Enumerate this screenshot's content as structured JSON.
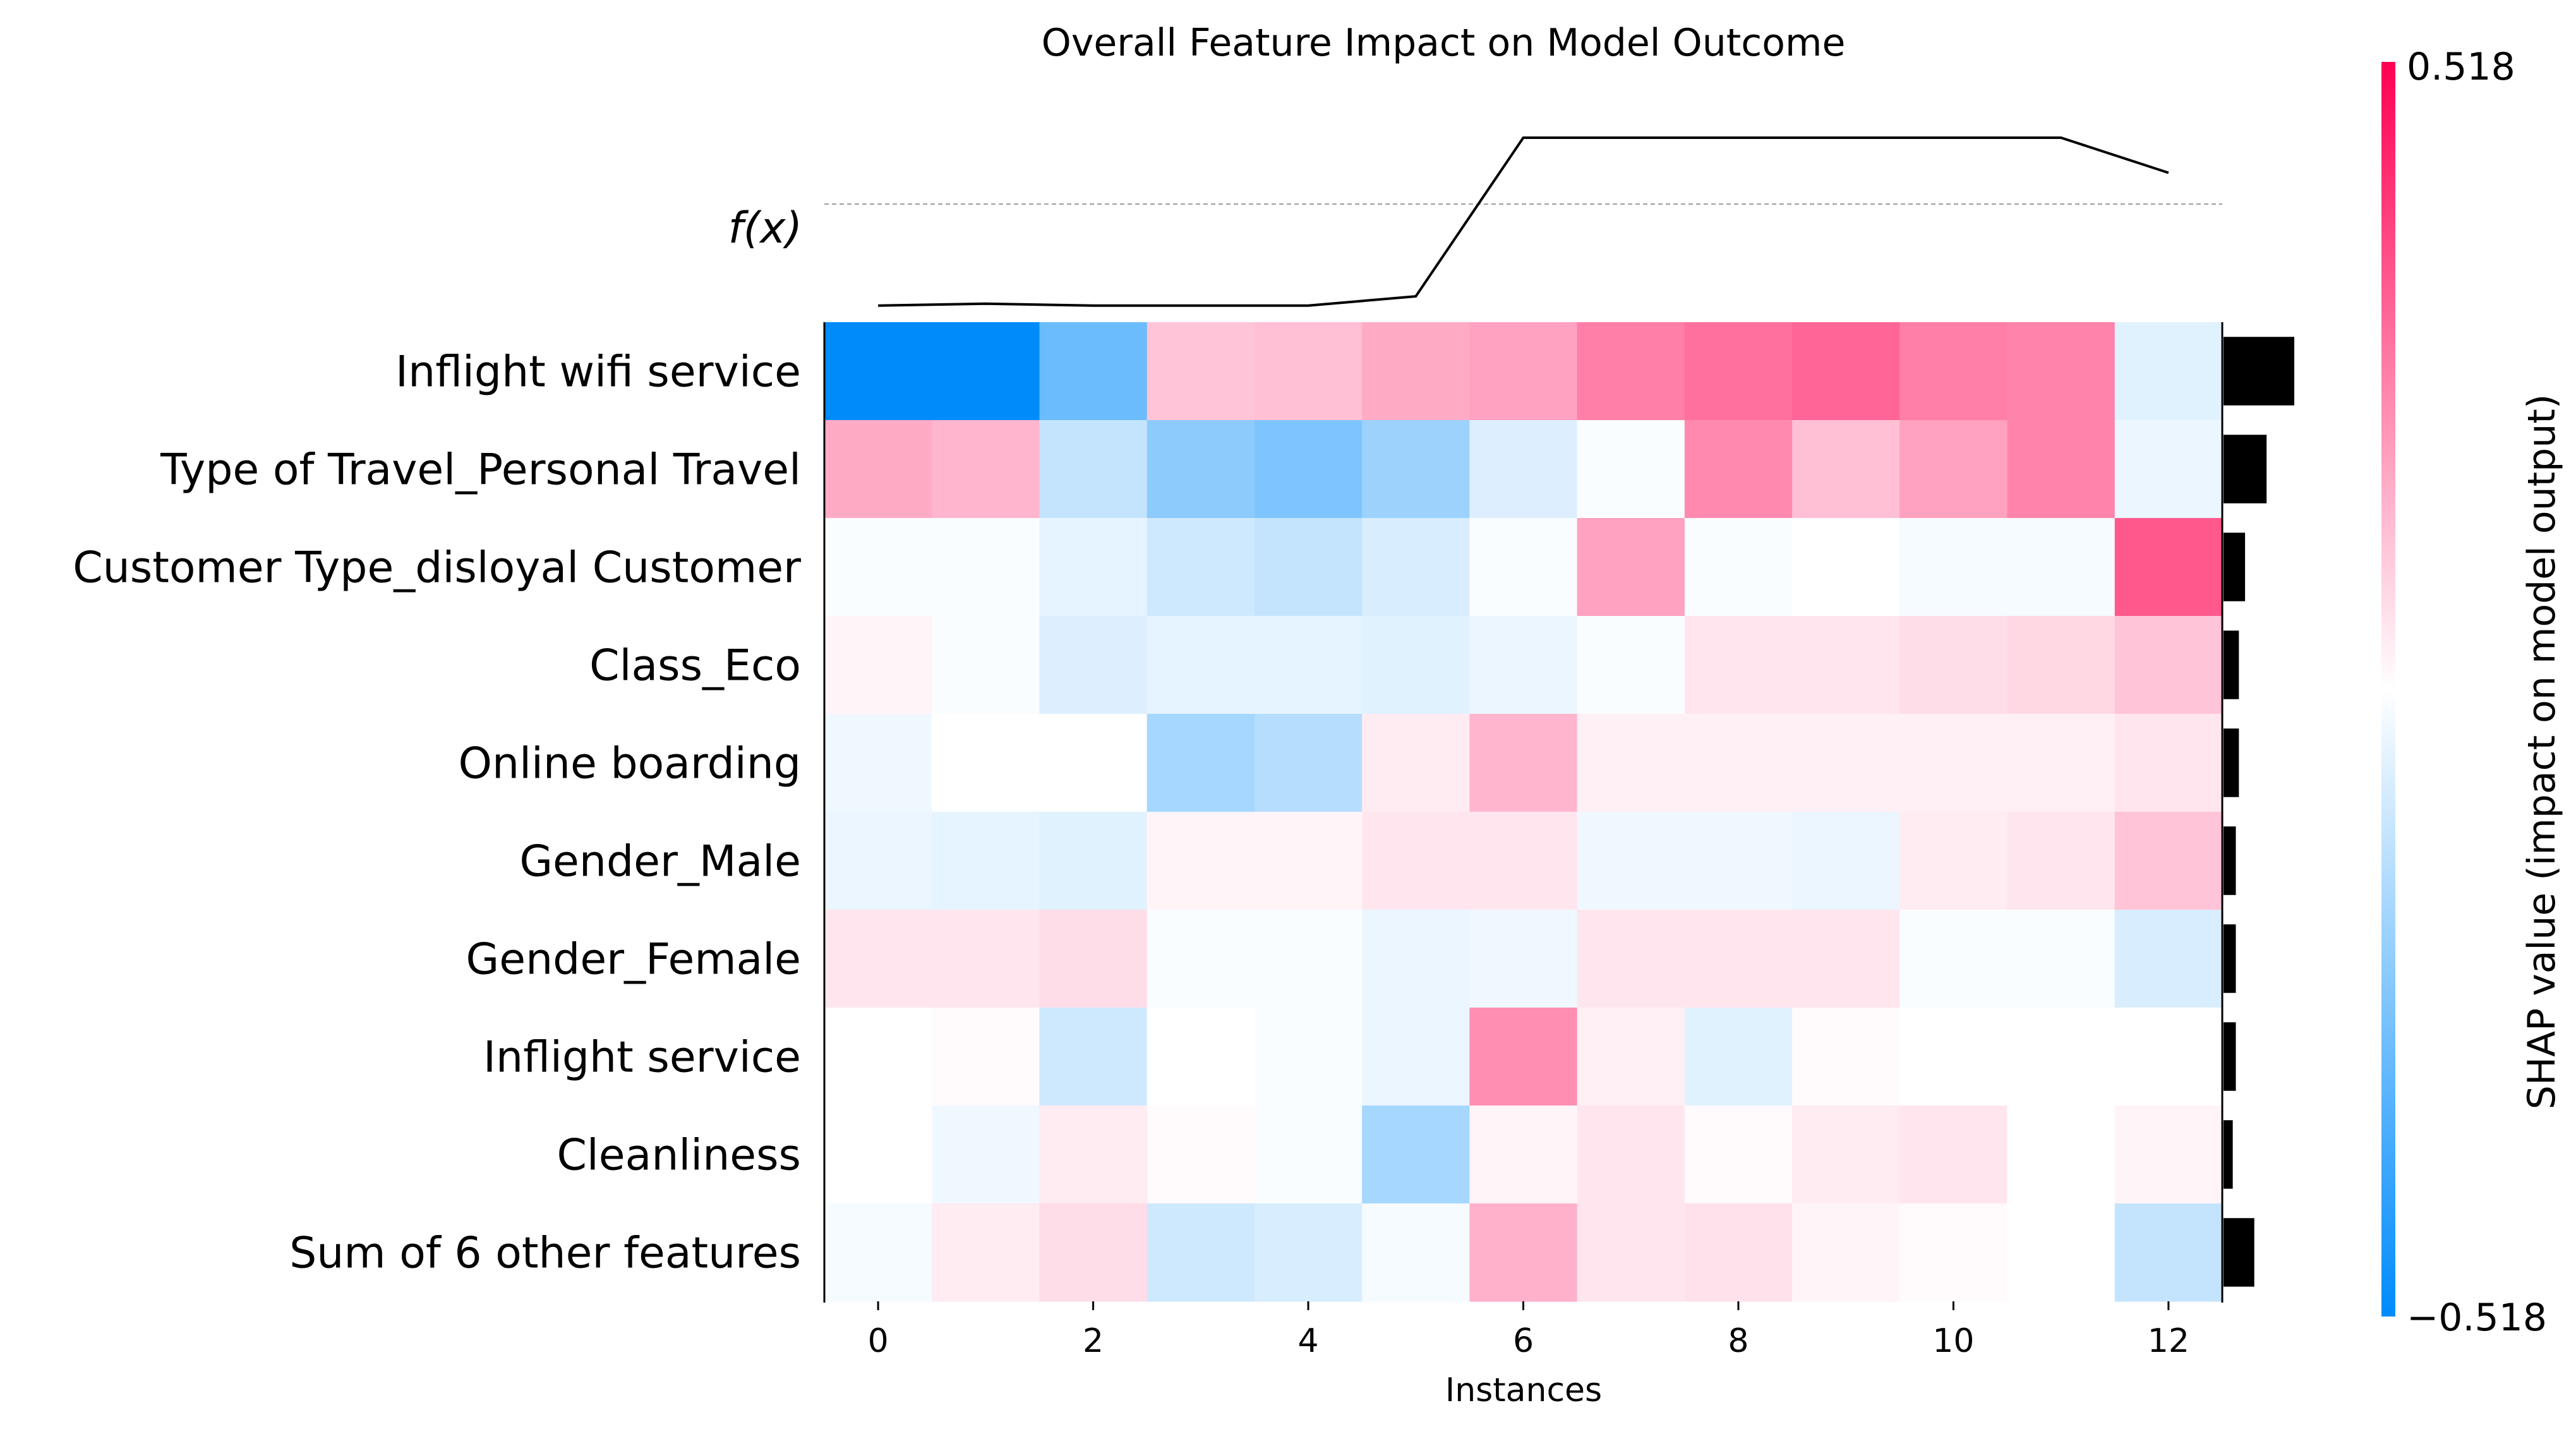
{
  "chart_data": {
    "type": "heatmap",
    "title": "Overall Feature Impact on Model Outcome",
    "xlabel": "Instances",
    "fx_label": "f(x)",
    "x_ticks": [
      0,
      2,
      4,
      6,
      8,
      10,
      12
    ],
    "x_tick_labels": [
      "0",
      "2",
      "4",
      "6",
      "8",
      "10",
      "12"
    ],
    "instances": [
      0,
      1,
      2,
      3,
      4,
      5,
      6,
      7,
      8,
      9,
      10,
      11,
      12
    ],
    "features": [
      "Inflight wifi service",
      "Type of Travel_Personal Travel",
      "Customer Type_disloyal Customer",
      "Class_Eco",
      "Online boarding",
      "Gender_Male",
      "Gender_Female",
      "Inflight service",
      "Cleanliness",
      "Sum of 6 other features"
    ],
    "shap_values": [
      [
        -0.52,
        -0.52,
        -0.3,
        0.12,
        0.13,
        0.17,
        0.19,
        0.26,
        0.29,
        0.31,
        0.26,
        0.25,
        -0.06
      ],
      [
        0.17,
        0.15,
        -0.12,
        -0.23,
        -0.26,
        -0.2,
        -0.07,
        -0.01,
        0.24,
        0.13,
        0.19,
        0.25,
        -0.04
      ],
      [
        -0.01,
        -0.01,
        -0.05,
        -0.1,
        -0.12,
        -0.08,
        -0.01,
        0.19,
        -0.01,
        0.0,
        -0.02,
        -0.02,
        0.34
      ],
      [
        0.02,
        -0.01,
        -0.07,
        -0.05,
        -0.05,
        -0.06,
        -0.04,
        -0.01,
        0.05,
        0.05,
        0.07,
        0.08,
        0.12
      ],
      [
        -0.03,
        0.0,
        0.0,
        -0.18,
        -0.15,
        0.04,
        0.15,
        0.03,
        0.03,
        0.03,
        0.03,
        0.03,
        0.05
      ],
      [
        -0.04,
        -0.05,
        -0.06,
        0.02,
        0.02,
        0.05,
        0.05,
        -0.03,
        -0.03,
        -0.04,
        0.04,
        0.05,
        0.12
      ],
      [
        0.05,
        0.05,
        0.07,
        -0.01,
        -0.01,
        -0.04,
        -0.03,
        0.05,
        0.05,
        0.05,
        -0.01,
        -0.01,
        -0.08
      ],
      [
        0.0,
        0.01,
        -0.1,
        0.0,
        -0.01,
        -0.04,
        0.23,
        0.03,
        -0.06,
        0.01,
        0.0,
        0.0,
        0.0
      ],
      [
        0.0,
        -0.03,
        0.04,
        0.01,
        -0.01,
        -0.18,
        0.02,
        0.05,
        0.01,
        0.04,
        0.05,
        0.0,
        0.02
      ],
      [
        -0.02,
        0.04,
        0.07,
        -0.1,
        -0.08,
        -0.02,
        0.16,
        0.05,
        0.06,
        0.02,
        0.01,
        0.0,
        -0.12
      ]
    ],
    "feature_importance": [
      0.23,
      0.14,
      0.07,
      0.05,
      0.05,
      0.04,
      0.04,
      0.04,
      0.03,
      0.1
    ],
    "fx_values": [
      0.09,
      0.1,
      0.09,
      0.09,
      0.09,
      0.14,
      1.0,
      1.0,
      1.0,
      1.0,
      1.0,
      1.0,
      0.81
    ],
    "fx_baseline": 0.64,
    "colorbar": {
      "label": "SHAP value (impact on model output)",
      "min": -0.518,
      "max": 0.518,
      "min_label": "−0.518",
      "max_label": "0.518"
    },
    "colors": {
      "negative": "#008bfb",
      "positive": "#ff0052",
      "neutral": "#ffffff",
      "bar": "#000000",
      "baseline": "#999999"
    }
  }
}
